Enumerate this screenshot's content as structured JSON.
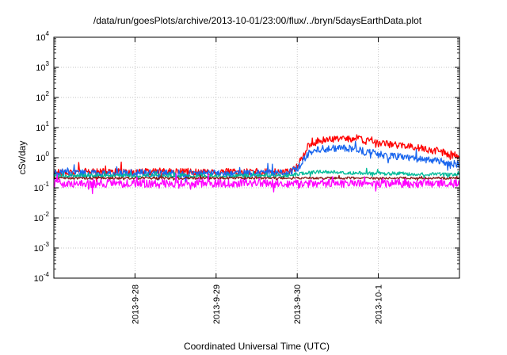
{
  "chart_data": {
    "type": "line",
    "title": "/data/run/goesPlots/archive/2013-10-01/23:00/flux/../bryn/5daysEarthData.plot",
    "xlabel": "Coordinated Universal Time (UTC)",
    "ylabel": "cSv/day",
    "yscale": "log",
    "ylim": [
      0.0001,
      10000
    ],
    "yticks": [
      {
        "base": "10",
        "exp": "-4",
        "value": 0.0001
      },
      {
        "base": "10",
        "exp": "-3",
        "value": 0.001
      },
      {
        "base": "10",
        "exp": "-2",
        "value": 0.01
      },
      {
        "base": "10",
        "exp": "-1",
        "value": 0.1
      },
      {
        "base": "10",
        "exp": "0",
        "value": 1
      },
      {
        "base": "10",
        "exp": "1",
        "value": 10
      },
      {
        "base": "10",
        "exp": "2",
        "value": 100
      },
      {
        "base": "10",
        "exp": "3",
        "value": 1000
      },
      {
        "base": "10",
        "exp": "4",
        "value": 10000
      }
    ],
    "xlim": [
      "2013-09-27T00:00",
      "2013-10-02T00:00"
    ],
    "xticks": [
      {
        "label": "2013-9-28",
        "value": "2013-09-28T00:00"
      },
      {
        "label": "2013-9-29",
        "value": "2013-09-29T00:00"
      },
      {
        "label": "2013-9-30",
        "value": "2013-09-30T00:00"
      },
      {
        "label": "2013-10-1",
        "value": "2013-10-01T00:00"
      }
    ],
    "grid": true,
    "legend": "none",
    "series": [
      {
        "color": "#ff0000",
        "x": [
          "2013-09-27T00:00",
          "2013-09-27T12:00",
          "2013-09-28T00:00",
          "2013-09-28T12:00",
          "2013-09-29T00:00",
          "2013-09-29T12:00",
          "2013-09-29T21:00",
          "2013-09-30T00:00",
          "2013-09-30T03:00",
          "2013-09-30T06:00",
          "2013-09-30T12:00",
          "2013-09-30T18:00",
          "2013-09-30T20:00",
          "2013-09-30T22:00",
          "2013-10-01T00:00",
          "2013-10-01T06:00",
          "2013-10-01T12:00",
          "2013-10-01T18:00",
          "2013-10-02T00:00"
        ],
        "y": [
          0.33,
          0.34,
          0.33,
          0.34,
          0.33,
          0.34,
          0.33,
          0.5,
          2.2,
          3.6,
          4.3,
          4.4,
          3.4,
          3.9,
          3.0,
          2.6,
          2.1,
          1.6,
          1.1
        ],
        "noise": 0.12
      },
      {
        "color": "#1a66ee",
        "x": [
          "2013-09-27T00:00",
          "2013-09-27T12:00",
          "2013-09-28T00:00",
          "2013-09-28T12:00",
          "2013-09-29T00:00",
          "2013-09-29T12:00",
          "2013-09-29T21:00",
          "2013-09-30T00:00",
          "2013-09-30T03:00",
          "2013-09-30T06:00",
          "2013-09-30T12:00",
          "2013-09-30T18:00",
          "2013-09-30T20:00",
          "2013-09-30T22:00",
          "2013-10-01T00:00",
          "2013-10-01T06:00",
          "2013-10-01T12:00",
          "2013-10-01T18:00",
          "2013-10-02T00:00"
        ],
        "y": [
          0.31,
          0.3,
          0.31,
          0.3,
          0.31,
          0.3,
          0.31,
          0.42,
          1.3,
          1.9,
          2.1,
          2.0,
          1.5,
          1.7,
          1.3,
          1.1,
          0.9,
          0.75,
          0.6
        ],
        "noise": 0.12
      },
      {
        "color": "#00bb99",
        "x": [
          "2013-09-27T00:00",
          "2013-09-28T00:00",
          "2013-09-29T00:00",
          "2013-09-29T21:00",
          "2013-09-30T00:00",
          "2013-09-30T06:00",
          "2013-09-30T12:00",
          "2013-10-01T00:00",
          "2013-10-01T12:00",
          "2013-10-02T00:00"
        ],
        "y": [
          0.25,
          0.25,
          0.25,
          0.25,
          0.28,
          0.34,
          0.32,
          0.3,
          0.29,
          0.28
        ],
        "noise": 0.06
      },
      {
        "color": "#8b1a1a",
        "x": [
          "2013-09-27T00:00",
          "2013-09-28T00:00",
          "2013-09-29T00:00",
          "2013-09-30T00:00",
          "2013-10-01T00:00",
          "2013-10-02T00:00"
        ],
        "y": [
          0.21,
          0.21,
          0.21,
          0.21,
          0.21,
          0.21
        ],
        "noise": 0.04
      },
      {
        "color": "#ff00ff",
        "x": [
          "2013-09-27T00:00",
          "2013-09-28T00:00",
          "2013-09-29T00:00",
          "2013-09-30T00:00",
          "2013-10-01T00:00",
          "2013-10-02T00:00"
        ],
        "y": [
          0.14,
          0.14,
          0.14,
          0.14,
          0.14,
          0.14
        ],
        "noise": 0.14
      }
    ]
  }
}
